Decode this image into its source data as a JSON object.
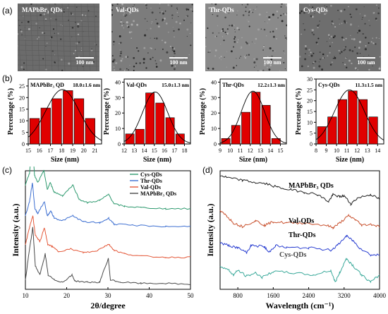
{
  "figure": {
    "panels": {
      "a": "(a)",
      "b": "(b)",
      "c": "(c)",
      "d": "(d)"
    }
  },
  "tem_images": [
    {
      "label": "MAPbBr₃ QDs",
      "scale": "100 nm",
      "tone": "#6b6b6b"
    },
    {
      "label": "Val-QDs",
      "scale": "100 nm",
      "tone": "#7c7c7c"
    },
    {
      "label": "Thr-QDs",
      "scale": "100 nm",
      "tone": "#8a8a8a"
    },
    {
      "label": "Cys-QDs",
      "scale": "100 nm",
      "tone": "#6e6e6e"
    }
  ],
  "chart_data": [
    {
      "type": "bar",
      "label": "MAPbBr₃ QD",
      "annotation": "18.0±1.6 nm",
      "xlabel": "Size (nm)",
      "ylabel": "Percentage (%)",
      "categories": [
        16,
        17,
        18,
        19,
        20,
        21
      ],
      "values": [
        11,
        15.5,
        19.5,
        23,
        19.5,
        11
      ],
      "xticks": [
        15,
        16,
        17,
        18,
        19,
        20,
        21
      ],
      "yticks": [
        0,
        5,
        10,
        15,
        20,
        25
      ],
      "xlim": [
        15,
        21.6
      ],
      "ylim": [
        0,
        28
      ]
    },
    {
      "type": "bar",
      "label": "Val-QDs",
      "annotation": "15.0±1.3 nm",
      "xlabel": "Size (nm)",
      "ylabel": "Percentage (%)",
      "categories": [
        13,
        14,
        15,
        16,
        17,
        18
      ],
      "values": [
        6.5,
        9.5,
        33,
        26.5,
        17,
        6.5
      ],
      "xticks": [
        12,
        13,
        14,
        15,
        16,
        17,
        18
      ],
      "yticks": [
        0,
        10,
        20,
        30,
        40
      ],
      "xlim": [
        12,
        18.6
      ],
      "ylim": [
        0,
        42
      ]
    },
    {
      "type": "bar",
      "label": "Thr-QDs",
      "annotation": "12.2±1.3 nm",
      "xlabel": "Size (nm)",
      "ylabel": "Percentage (%)",
      "categories": [
        10,
        11,
        12,
        13,
        14,
        15
      ],
      "values": [
        3.5,
        12,
        20.5,
        33.5,
        25,
        3.5
      ],
      "xticks": [
        9,
        10,
        11,
        12,
        13,
        14,
        15
      ],
      "yticks": [
        0,
        10,
        20,
        30,
        40
      ],
      "xlim": [
        9,
        15.6
      ],
      "ylim": [
        0,
        42
      ]
    },
    {
      "type": "bar",
      "label": "Cys-QDs",
      "annotation": "11.3±1.5 nm",
      "xlabel": "Size (nm)",
      "ylabel": "Percentage (%)",
      "categories": [
        9,
        10,
        11,
        12,
        13,
        14
      ],
      "values": [
        8,
        12.5,
        20.5,
        24.5,
        20.5,
        12.5
      ],
      "xticks": [
        8,
        9,
        10,
        11,
        12,
        13,
        14
      ],
      "yticks": [
        0,
        5,
        10,
        15,
        20,
        25,
        30
      ],
      "xlim": [
        8,
        14.6
      ],
      "ylim": [
        0,
        30
      ]
    },
    {
      "type": "line",
      "xlabel": "2θ/degree",
      "ylabel": "Intensity (a.u.)",
      "xticks": [
        10,
        20,
        30,
        40,
        50
      ],
      "xlim": [
        10,
        50
      ],
      "series": [
        {
          "name": "Cys-QDs",
          "color": "#2e9a6f",
          "offset": 0.62,
          "points": [
            [
              10,
              0.22
            ],
            [
              11,
              0.32
            ],
            [
              11.7,
              0.62
            ],
            [
              12.2,
              0.3
            ],
            [
              13,
              0.24
            ],
            [
              14.5,
              0.34
            ],
            [
              15.3,
              0.18
            ],
            [
              16,
              0.24
            ],
            [
              17,
              0.16
            ],
            [
              19,
              0.13
            ],
            [
              21.5,
              0.22
            ],
            [
              23,
              0.1
            ],
            [
              25,
              0.07
            ],
            [
              28,
              0.09
            ],
            [
              30.2,
              0.14
            ],
            [
              31.5,
              0.06
            ],
            [
              34,
              0.04
            ],
            [
              38,
              0.03
            ],
            [
              44,
              0.02
            ],
            [
              50,
              0.02
            ]
          ]
        },
        {
          "name": "Thr-QDs",
          "color": "#3d6fd1",
          "offset": 0.48,
          "points": [
            [
              10,
              0.1
            ],
            [
              11,
              0.22
            ],
            [
              11.7,
              0.38
            ],
            [
              12.3,
              0.16
            ],
            [
              13,
              0.12
            ],
            [
              14.6,
              0.22
            ],
            [
              15.3,
              0.1
            ],
            [
              16.2,
              0.14
            ],
            [
              17,
              0.08
            ],
            [
              19,
              0.06
            ],
            [
              21.5,
              0.1
            ],
            [
              24,
              0.05
            ],
            [
              28,
              0.04
            ],
            [
              30.2,
              0.08
            ],
            [
              31.5,
              0.03
            ],
            [
              36,
              0.02
            ],
            [
              44,
              0.01
            ],
            [
              50,
              0.01
            ]
          ]
        },
        {
          "name": "Val-QDs",
          "color": "#e4593a",
          "offset": 0.22,
          "points": [
            [
              10,
              0.12
            ],
            [
              11,
              0.26
            ],
            [
              11.8,
              0.36
            ],
            [
              12.4,
              0.2
            ],
            [
              13.5,
              0.14
            ],
            [
              14.6,
              0.26
            ],
            [
              15.4,
              0.12
            ],
            [
              16.5,
              0.1
            ],
            [
              18,
              0.06
            ],
            [
              21,
              0.08
            ],
            [
              24,
              0.05
            ],
            [
              27,
              0.06
            ],
            [
              29,
              0.1
            ],
            [
              30.2,
              0.12
            ],
            [
              31.5,
              0.07
            ],
            [
              34,
              0.04
            ],
            [
              38,
              0.02
            ],
            [
              44,
              0.01
            ],
            [
              50,
              0.01
            ]
          ]
        },
        {
          "name": "MAPbBr₃ QDs",
          "color": "#4a4a4a",
          "offset": 0.0,
          "points": [
            [
              10,
              0.04
            ],
            [
              11,
              0.3
            ],
            [
              11.8,
              0.48
            ],
            [
              12.4,
              0.16
            ],
            [
              13.5,
              0.08
            ],
            [
              14.8,
              0.26
            ],
            [
              15.5,
              0.08
            ],
            [
              17,
              0.04
            ],
            [
              19,
              0.02
            ],
            [
              21.3,
              0.08
            ],
            [
              22,
              0.03
            ],
            [
              25,
              0.02
            ],
            [
              28,
              0.02
            ],
            [
              30.1,
              0.22
            ],
            [
              30.6,
              0.04
            ],
            [
              33,
              0.02
            ],
            [
              38,
              0.01
            ],
            [
              44,
              0.01
            ],
            [
              50,
              0.0
            ]
          ]
        }
      ]
    },
    {
      "type": "line",
      "xlabel": "Wavelength (cm⁻¹)",
      "ylabel": "Intensity (a.u.)",
      "xticks": [
        800,
        1600,
        2400,
        3200,
        4000
      ],
      "xlim": [
        400,
        4000
      ],
      "series": [
        {
          "name": "MAPbBr₃ QDs",
          "color": "#222222",
          "offset": 0.8,
          "points": [
            [
              400,
              0.16
            ],
            [
              600,
              0.14
            ],
            [
              900,
              0.12
            ],
            [
              1200,
              0.1
            ],
            [
              1450,
              0.09
            ],
            [
              1700,
              0.06
            ],
            [
              2000,
              0.04
            ],
            [
              2300,
              0.02
            ],
            [
              2600,
              0.0
            ],
            [
              2850,
              -0.06
            ],
            [
              2950,
              0.0
            ],
            [
              3100,
              -0.02
            ],
            [
              3200,
              -0.01
            ],
            [
              3350,
              -0.08
            ],
            [
              3500,
              -0.03
            ],
            [
              3800,
              0.0
            ],
            [
              4000,
              -0.04
            ]
          ]
        },
        {
          "name": "Val-QDs",
          "color": "#c9522f",
          "offset": 0.56,
          "points": [
            [
              400,
              0.1
            ],
            [
              550,
              0.06
            ],
            [
              700,
              0.0
            ],
            [
              900,
              -0.03
            ],
            [
              1200,
              0.02
            ],
            [
              1400,
              -0.02
            ],
            [
              1600,
              0.01
            ],
            [
              1900,
              0.0
            ],
            [
              2300,
              0.0
            ],
            [
              2800,
              -0.02
            ],
            [
              2950,
              -0.04
            ],
            [
              3100,
              0.0
            ],
            [
              3300,
              0.06
            ],
            [
              3450,
              0.03
            ],
            [
              3600,
              -0.02
            ],
            [
              3800,
              -0.01
            ],
            [
              4000,
              -0.03
            ]
          ]
        },
        {
          "name": "Thr-QDs",
          "color": "#2a3fd1",
          "offset": 0.35,
          "points": [
            [
              400,
              0.04
            ],
            [
              600,
              0.02
            ],
            [
              800,
              0.0
            ],
            [
              1000,
              -0.04
            ],
            [
              1100,
              0.02
            ],
            [
              1400,
              0.01
            ],
            [
              1500,
              -0.04
            ],
            [
              1650,
              0.02
            ],
            [
              1900,
              0.0
            ],
            [
              2400,
              0.0
            ],
            [
              2900,
              -0.02
            ],
            [
              3050,
              0.02
            ],
            [
              3250,
              0.1
            ],
            [
              3400,
              0.06
            ],
            [
              3550,
              0.0
            ],
            [
              3800,
              -0.06
            ],
            [
              4000,
              -0.06
            ]
          ]
        },
        {
          "name": "Cys-QDs",
          "color": "#3aa99a",
          "offset": 0.14,
          "points": [
            [
              400,
              0.06
            ],
            [
              600,
              0.02
            ],
            [
              700,
              -0.02
            ],
            [
              800,
              0.02
            ],
            [
              1000,
              -0.03
            ],
            [
              1200,
              0.0
            ],
            [
              1350,
              -0.04
            ],
            [
              1600,
              0.01
            ],
            [
              2000,
              0.0
            ],
            [
              2500,
              -0.02
            ],
            [
              2900,
              0.02
            ],
            [
              3000,
              -0.08
            ],
            [
              3100,
              0.0
            ],
            [
              3250,
              0.12
            ],
            [
              3400,
              0.06
            ],
            [
              3600,
              -0.02
            ],
            [
              3800,
              -0.08
            ],
            [
              4000,
              -0.02
            ]
          ]
        }
      ]
    }
  ]
}
